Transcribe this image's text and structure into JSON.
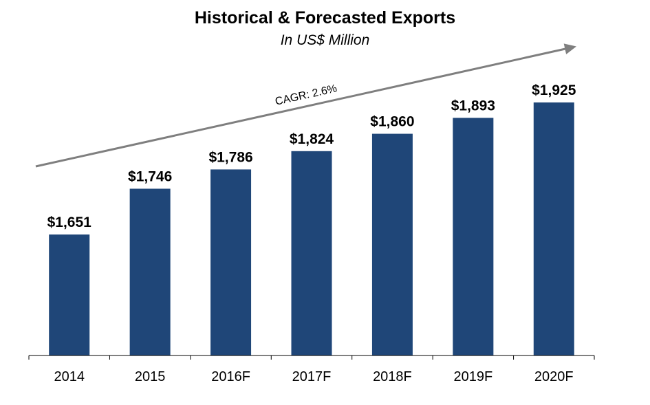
{
  "chart_data": {
    "type": "bar",
    "title": "Historical & Forecasted Exports",
    "subtitle": "In US$ Million",
    "xlabel": "",
    "ylabel": "",
    "categories": [
      "2014",
      "2015",
      "2016F",
      "2017F",
      "2018F",
      "2019F",
      "2020F"
    ],
    "values": [
      1651,
      1746,
      1786,
      1824,
      1860,
      1893,
      1925
    ],
    "data_labels": [
      "$1,651",
      "$1,746",
      "$1,786",
      "$1,824",
      "$1,860",
      "$1,893",
      "$1,925"
    ],
    "ylim": [
      1400,
      1925
    ],
    "grid": false,
    "legend": "none",
    "annotation": {
      "text": "CAGR: 2.6%",
      "shape": "arrow",
      "direction": "up-right"
    },
    "colors": {
      "bar": "#1f4678",
      "arrow": "#7f7f7f",
      "axis": "#000000",
      "text": "#000000"
    }
  }
}
